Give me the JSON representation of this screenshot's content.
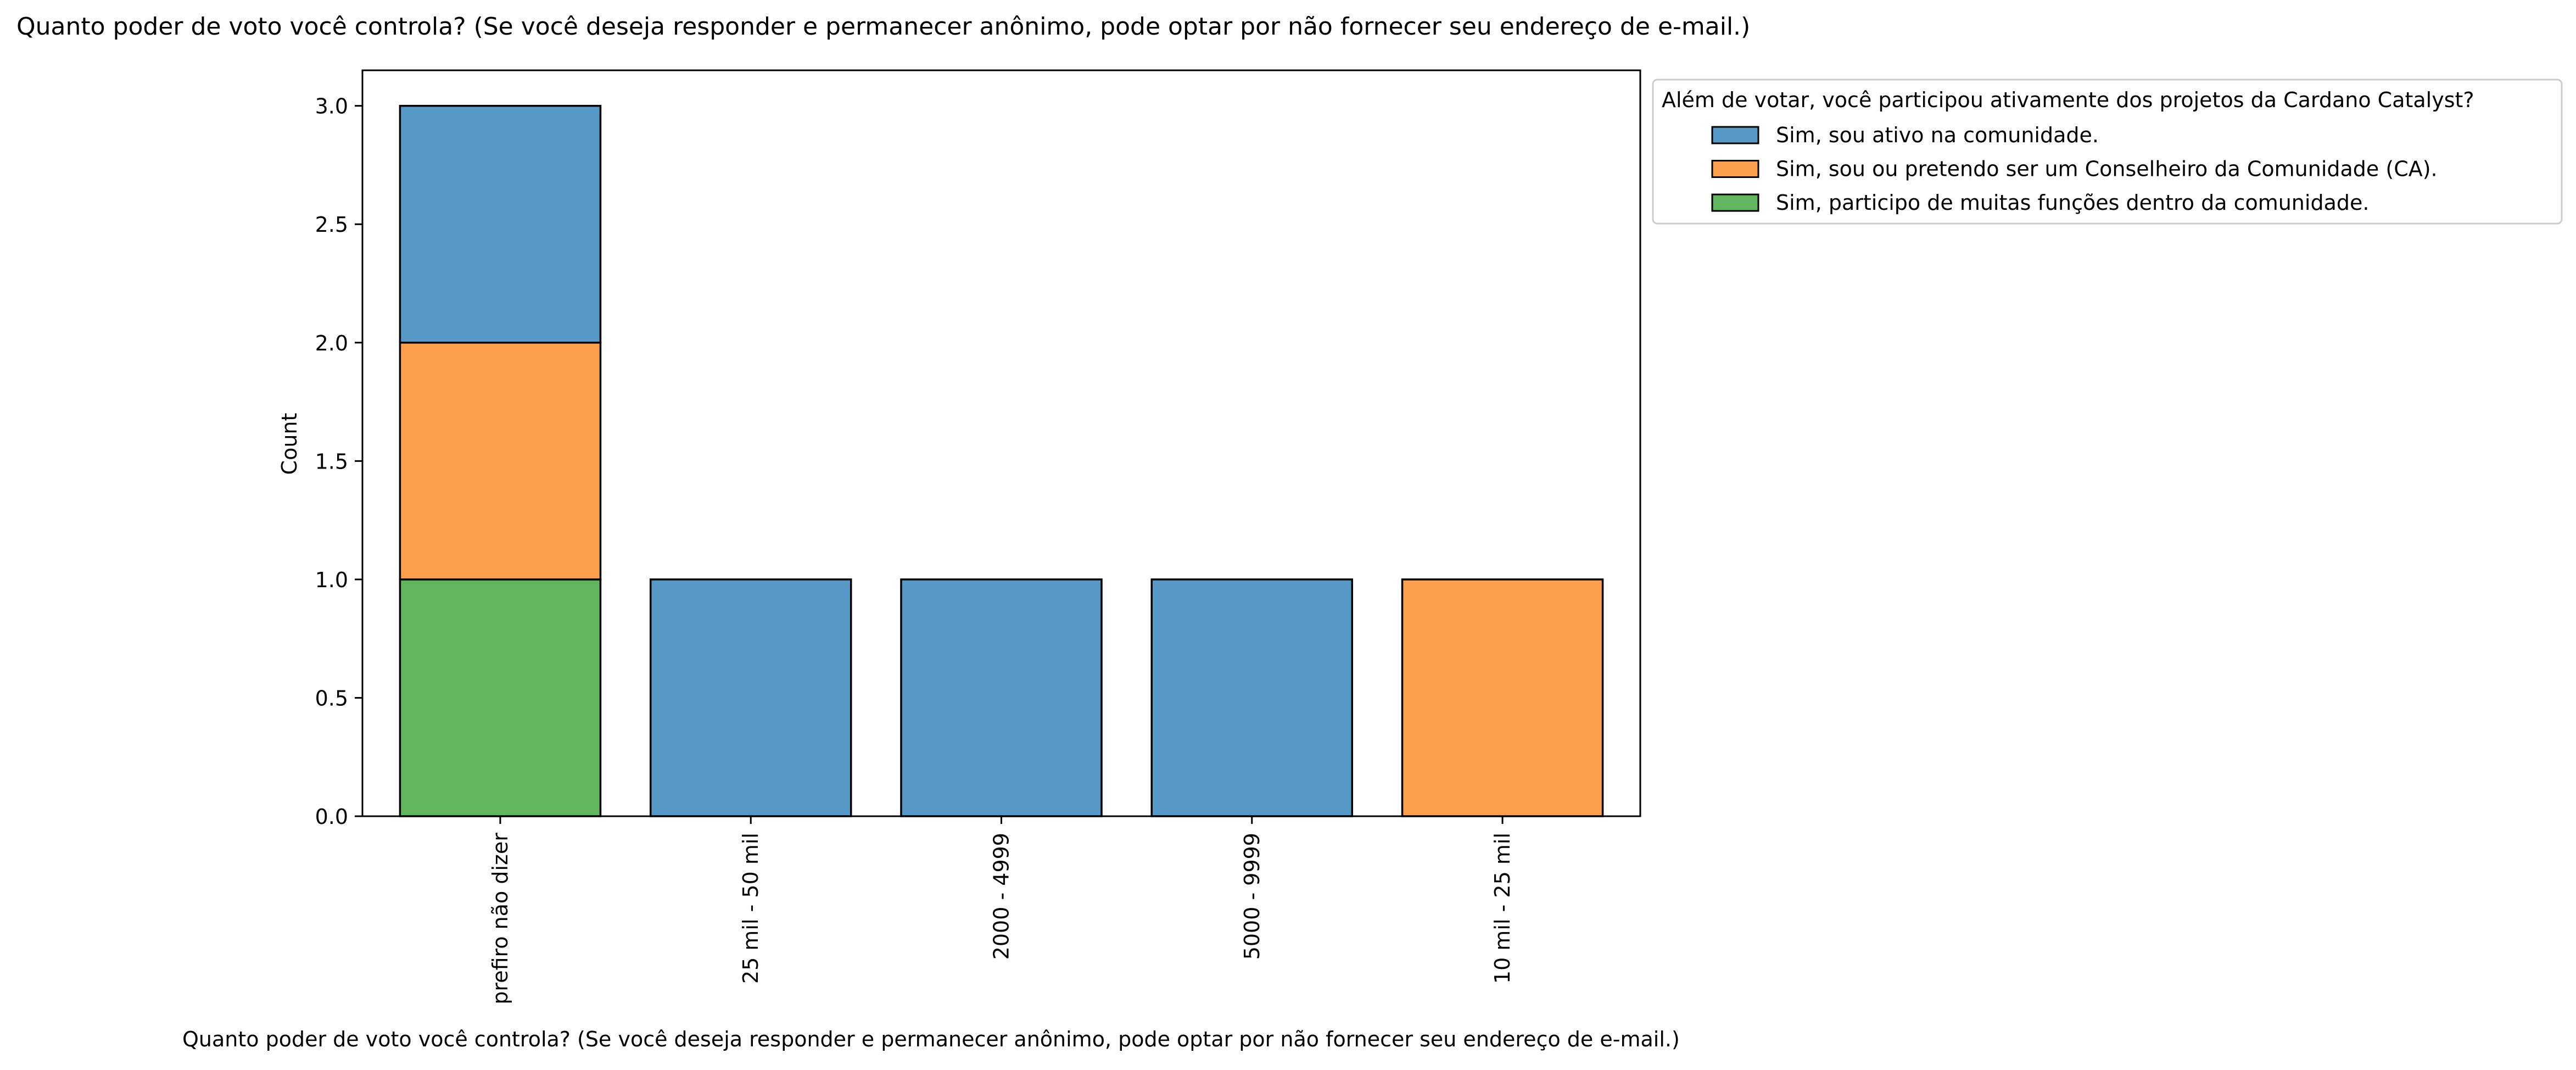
{
  "chart_data": {
    "type": "bar",
    "stacked": true,
    "title": "Quanto poder de voto você controla? (Se você deseja responder e permanecer anônimo, pode optar por não fornecer seu endereço de e-mail.)",
    "xlabel": "Quanto poder de voto você controla? (Se você deseja responder e permanecer anônimo, pode optar por não fornecer seu endereço de e-mail.)",
    "ylabel": "Count",
    "ylim": [
      0,
      3.15
    ],
    "yticks": [
      "0.0",
      "0.5",
      "1.0",
      "1.5",
      "2.0",
      "2.5",
      "3.0"
    ],
    "grid": false,
    "categories": [
      "prefiro não dizer",
      "25 mil - 50 mil",
      "2000 - 4999",
      "5000 - 9999",
      "10 mil - 25 mil"
    ],
    "legend": {
      "title": "Além de votar, você participou ativamente dos projetos da Cardano Catalyst?",
      "placement": "outside upper right"
    },
    "series": [
      {
        "name": "Sim, participo de muitas funções dentro da comunidade.",
        "color": "#62b65f",
        "values": [
          1,
          0,
          0,
          0,
          0
        ]
      },
      {
        "name": "Sim, sou ou pretendo ser um Conselheiro da Comunidade (CA).",
        "color": "#fe9f4b",
        "values": [
          1,
          0,
          0,
          0,
          1
        ]
      },
      {
        "name": "Sim, sou ativo na comunidade.",
        "color": "#5699c6",
        "values": [
          1,
          1,
          1,
          1,
          0
        ]
      }
    ],
    "legend_order": [
      2,
      1,
      0
    ]
  }
}
